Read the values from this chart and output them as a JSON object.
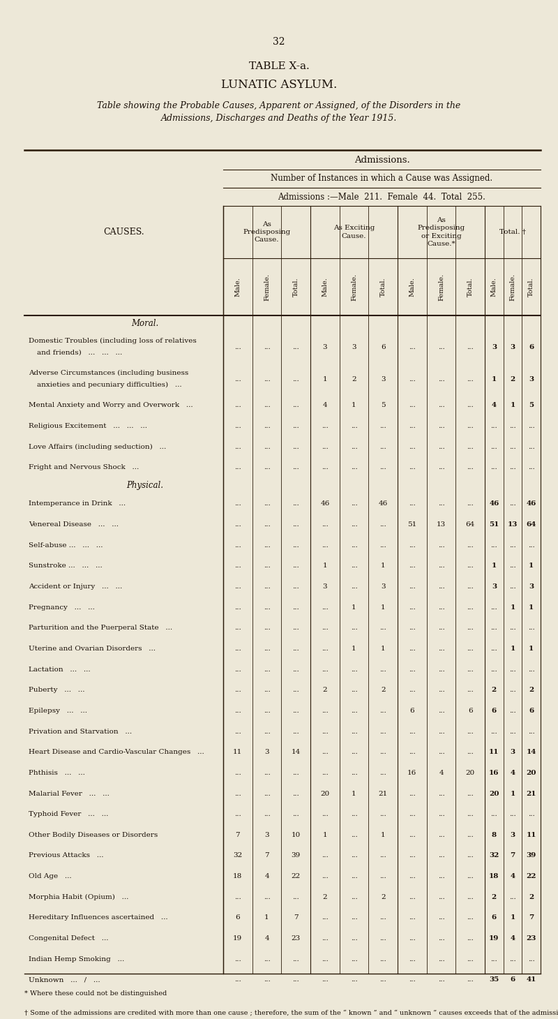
{
  "page_number": "32",
  "title1": "TABLE X-a.",
  "title2": "LUNATIC ASYLUM.",
  "subtitle": "Table showing the Probable Causes, Apparent or Assigned, of the Disorders in the\nAdmissions, Discharges and Deaths of the Year 1915.",
  "admissions_header": "Admissions.",
  "instances_header": "Number of Instances in which a Cause was Assigned.",
  "admissions_detail": "Admissions :—Male  211.  Female  44.  Total  255.",
  "col_group1": "As\nPredisposing\nCause.",
  "col_group2": "As Exciting\nCause.",
  "col_group3": "As\nPredisposing\nor Exciting\nCause.*",
  "col_group4": "Total. †",
  "col_sub": [
    "Male.",
    "Female.",
    "Total."
  ],
  "causes_label": "CAUSES.",
  "footnote1": "* Where these could not be distinguished",
  "footnote2": "† Some of the admissions are credited with more than one cause ; therefore, the sum of the “ known ” and “ unknown ” causes exceeds that of the admissions.",
  "moral_header": "Moral.",
  "physical_header": "Physical.",
  "rows": [
    {
      "cause": "Domestic Troubles (including loss of relatives\nand friends)   ...   ...   ...",
      "pred": [
        "...",
        "...",
        "..."
      ],
      "excit": [
        "3",
        "3",
        "6"
      ],
      "preex": [
        "...",
        "...",
        "..."
      ],
      "total": [
        "3",
        "3",
        "6"
      ],
      "multiline": true
    },
    {
      "cause": "Adverse Circumstances (including business\nanxieties and pecuniary difficulties)   ...",
      "pred": [
        "...",
        "...",
        "..."
      ],
      "excit": [
        "1",
        "2",
        "3"
      ],
      "preex": [
        "...",
        "...",
        "..."
      ],
      "total": [
        "1",
        "2",
        "3"
      ],
      "multiline": true
    },
    {
      "cause": "Mental Anxiety and Worry and Overwork   ...",
      "pred": [
        "...",
        "...",
        "..."
      ],
      "excit": [
        "4",
        "1",
        "5"
      ],
      "preex": [
        "...",
        "...",
        "..."
      ],
      "total": [
        "4",
        "1",
        "5"
      ],
      "multiline": false
    },
    {
      "cause": "Religious Excitement   ...   ...   ...",
      "pred": [
        "...",
        "...",
        "..."
      ],
      "excit": [
        "...",
        "...",
        "..."
      ],
      "preex": [
        "...",
        "...",
        "..."
      ],
      "total": [
        "...",
        "...",
        "..."
      ],
      "multiline": false
    },
    {
      "cause": "Love Affairs (including seduction)   ...",
      "pred": [
        "...",
        "...",
        "..."
      ],
      "excit": [
        "...",
        "...",
        "..."
      ],
      "preex": [
        "...",
        "...",
        "..."
      ],
      "total": [
        "...",
        "...",
        "..."
      ],
      "multiline": false
    },
    {
      "cause": "Fright and Nervous Shock   ...",
      "pred": [
        "...",
        "...",
        "..."
      ],
      "excit": [
        "...",
        "...",
        "..."
      ],
      "preex": [
        "...",
        "...",
        "..."
      ],
      "total": [
        "...",
        "...",
        "..."
      ],
      "multiline": false
    },
    {
      "cause": "Intemperance in Drink   ...",
      "pred": [
        "...",
        "...",
        "..."
      ],
      "excit": [
        "46",
        "...",
        "46"
      ],
      "preex": [
        "...",
        "...",
        "..."
      ],
      "total": [
        "46",
        "...",
        "46"
      ],
      "multiline": false
    },
    {
      "cause": "Venereal Disease   ...   ...",
      "pred": [
        "...",
        "...",
        "..."
      ],
      "excit": [
        "...",
        "...",
        "..."
      ],
      "preex": [
        "51",
        "13",
        "64"
      ],
      "total": [
        "51",
        "13",
        "64"
      ],
      "multiline": false
    },
    {
      "cause": "Self-abuse ...   ...   ...",
      "pred": [
        "...",
        "...",
        "..."
      ],
      "excit": [
        "...",
        "...",
        "..."
      ],
      "preex": [
        "...",
        "...",
        "..."
      ],
      "total": [
        "...",
        "...",
        "..."
      ],
      "multiline": false
    },
    {
      "cause": "Sunstroke ...   ...   ...",
      "pred": [
        "...",
        "...",
        "..."
      ],
      "excit": [
        "1",
        "...",
        "1"
      ],
      "preex": [
        "...",
        "...",
        "..."
      ],
      "total": [
        "1",
        "...",
        "1"
      ],
      "multiline": false
    },
    {
      "cause": "Accident or Injury   ...   ...",
      "pred": [
        "...",
        "...",
        "..."
      ],
      "excit": [
        "3",
        "...",
        "3"
      ],
      "preex": [
        "...",
        "...",
        "..."
      ],
      "total": [
        "3",
        "...",
        "3"
      ],
      "multiline": false
    },
    {
      "cause": "Pregnancy   ...   ...",
      "pred": [
        "...",
        "...",
        "..."
      ],
      "excit": [
        "...",
        "1",
        "1"
      ],
      "preex": [
        "...",
        "...",
        "..."
      ],
      "total": [
        "...",
        "1",
        "1"
      ],
      "multiline": false
    },
    {
      "cause": "Parturition and the Puerperal State   ...",
      "pred": [
        "...",
        "...",
        "..."
      ],
      "excit": [
        "...",
        "...",
        "..."
      ],
      "preex": [
        "...",
        "...",
        "..."
      ],
      "total": [
        "...",
        "...",
        "..."
      ],
      "multiline": false
    },
    {
      "cause": "Uterine and Ovarian Disorders   ...",
      "pred": [
        "...",
        "...",
        "..."
      ],
      "excit": [
        "...",
        "1",
        "1"
      ],
      "preex": [
        "...",
        "...",
        "..."
      ],
      "total": [
        "...",
        "1",
        "1"
      ],
      "multiline": false
    },
    {
      "cause": "Lactation   ...   ...",
      "pred": [
        "...",
        "...",
        "..."
      ],
      "excit": [
        "...",
        "...",
        "..."
      ],
      "preex": [
        "...",
        "...",
        "..."
      ],
      "total": [
        "...",
        "...",
        "..."
      ],
      "multiline": false
    },
    {
      "cause": "Puberty   ...   ...",
      "pred": [
        "...",
        "...",
        "..."
      ],
      "excit": [
        "2",
        "...",
        "2"
      ],
      "preex": [
        "...",
        "...",
        "..."
      ],
      "total": [
        "2",
        "...",
        "2"
      ],
      "multiline": false
    },
    {
      "cause": "Epilepsy   ...   ...",
      "pred": [
        "...",
        "...",
        "..."
      ],
      "excit": [
        "...",
        "...",
        "..."
      ],
      "preex": [
        "6",
        "...",
        "6"
      ],
      "total": [
        "6",
        "...",
        "6"
      ],
      "multiline": false
    },
    {
      "cause": "Privation and Starvation   ...",
      "pred": [
        "...",
        "...",
        "..."
      ],
      "excit": [
        "...",
        "...",
        "..."
      ],
      "preex": [
        "...",
        "...",
        "..."
      ],
      "total": [
        "...",
        "...",
        "..."
      ],
      "multiline": false
    },
    {
      "cause": "Heart Disease and Cardio-Vascular Changes   ...",
      "pred": [
        "11",
        "3",
        "14"
      ],
      "excit": [
        "...",
        "...",
        "..."
      ],
      "preex": [
        "...",
        "...",
        "..."
      ],
      "total": [
        "11",
        "3",
        "14"
      ],
      "multiline": false
    },
    {
      "cause": "Phthisis   ...   ...",
      "pred": [
        "...",
        "...",
        "..."
      ],
      "excit": [
        "...",
        "...",
        "..."
      ],
      "preex": [
        "16",
        "4",
        "20"
      ],
      "total": [
        "16",
        "4",
        "20"
      ],
      "multiline": false
    },
    {
      "cause": "Malarial Fever   ...   ...",
      "pred": [
        "...",
        "...",
        "..."
      ],
      "excit": [
        "20",
        "1",
        "21"
      ],
      "preex": [
        "...",
        "...",
        "..."
      ],
      "total": [
        "20",
        "1",
        "21"
      ],
      "multiline": false
    },
    {
      "cause": "Typhoid Fever   ...   ...",
      "pred": [
        "...",
        "...",
        "..."
      ],
      "excit": [
        "...",
        "...",
        "..."
      ],
      "preex": [
        "...",
        "...",
        "..."
      ],
      "total": [
        "...",
        "...",
        "..."
      ],
      "multiline": false
    },
    {
      "cause": "Other Bodily Diseases or Disorders",
      "pred": [
        "7",
        "3",
        "10"
      ],
      "excit": [
        "1",
        "...",
        "1"
      ],
      "preex": [
        "...",
        "...",
        "..."
      ],
      "total": [
        "8",
        "3",
        "11"
      ],
      "multiline": false
    },
    {
      "cause": "Previous Attacks   ...",
      "pred": [
        "32",
        "7",
        "39"
      ],
      "excit": [
        "...",
        "...",
        "..."
      ],
      "preex": [
        "...",
        "...",
        "..."
      ],
      "total": [
        "32",
        "7",
        "39"
      ],
      "multiline": false
    },
    {
      "cause": "Old Age   ...",
      "pred": [
        "18",
        "4",
        "22"
      ],
      "excit": [
        "...",
        "...",
        "..."
      ],
      "preex": [
        "...",
        "...",
        "..."
      ],
      "total": [
        "18",
        "4",
        "22"
      ],
      "multiline": false
    },
    {
      "cause": "Morphia Habit (Opium)   ...",
      "pred": [
        "...",
        "...",
        "..."
      ],
      "excit": [
        "2",
        "...",
        "2"
      ],
      "preex": [
        "...",
        "...",
        "..."
      ],
      "total": [
        "2",
        "...",
        "2"
      ],
      "multiline": false
    },
    {
      "cause": "Hereditary Influences ascertained   ...",
      "pred": [
        "6",
        "1",
        "7"
      ],
      "excit": [
        "...",
        "...",
        "..."
      ],
      "preex": [
        "...",
        "...",
        "..."
      ],
      "total": [
        "6",
        "1",
        "7"
      ],
      "multiline": false
    },
    {
      "cause": "Congenital Defect   ...",
      "pred": [
        "19",
        "4",
        "23"
      ],
      "excit": [
        "...",
        "...",
        "..."
      ],
      "preex": [
        "...",
        "...",
        "..."
      ],
      "total": [
        "19",
        "4",
        "23"
      ],
      "multiline": false
    },
    {
      "cause": "Indian Hemp Smoking   ...",
      "pred": [
        "...",
        "...",
        "..."
      ],
      "excit": [
        "...",
        "...",
        "..."
      ],
      "preex": [
        "...",
        "...",
        "..."
      ],
      "total": [
        "...",
        "...",
        "..."
      ],
      "multiline": false
    },
    {
      "cause": "Unknown   ...   /   ...",
      "pred": [
        "...",
        "...",
        "..."
      ],
      "excit": [
        "...",
        "...",
        "..."
      ],
      "preex": [
        "...",
        "...",
        "..."
      ],
      "total": [
        "35",
        "6",
        "41"
      ],
      "multiline": false
    }
  ],
  "bg_color": "#ede8d8",
  "text_color": "#1a1008",
  "line_color": "#2a1a08"
}
